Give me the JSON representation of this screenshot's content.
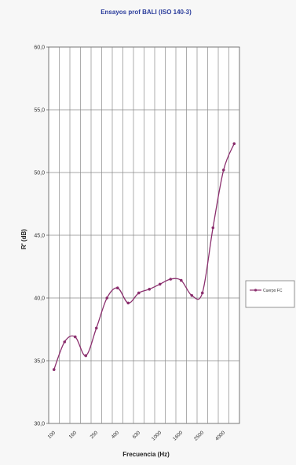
{
  "chart_data": {
    "type": "line",
    "title": "Ensayos prof BALI (ISO 140-3)",
    "xlabel": "Frecuencia (Hz)",
    "ylabel": "R' (dB)",
    "x_tick_labels": [
      "100",
      "160",
      "250",
      "400",
      "630",
      "1000",
      "1600",
      "2500",
      "4000"
    ],
    "ylim": [
      30,
      60
    ],
    "yticks": [
      "30,0",
      "35,0",
      "40,0",
      "45,0",
      "50,0",
      "55,0",
      "60,0"
    ],
    "grid": true,
    "legend_position": "right",
    "series": [
      {
        "name": "Cuerpo FC",
        "color": "#8b2f6e",
        "x": [
          "100",
          "125",
          "160",
          "200",
          "250",
          "315",
          "400",
          "500",
          "630",
          "800",
          "1000",
          "1250",
          "1600",
          "2000",
          "2500",
          "3150",
          "4000",
          "5000"
        ],
        "values": [
          34.3,
          36.5,
          36.9,
          35.4,
          37.6,
          40.0,
          40.8,
          39.6,
          40.4,
          40.7,
          41.1,
          41.5,
          41.4,
          40.2,
          40.4,
          45.6,
          50.2,
          52.3
        ]
      }
    ]
  }
}
